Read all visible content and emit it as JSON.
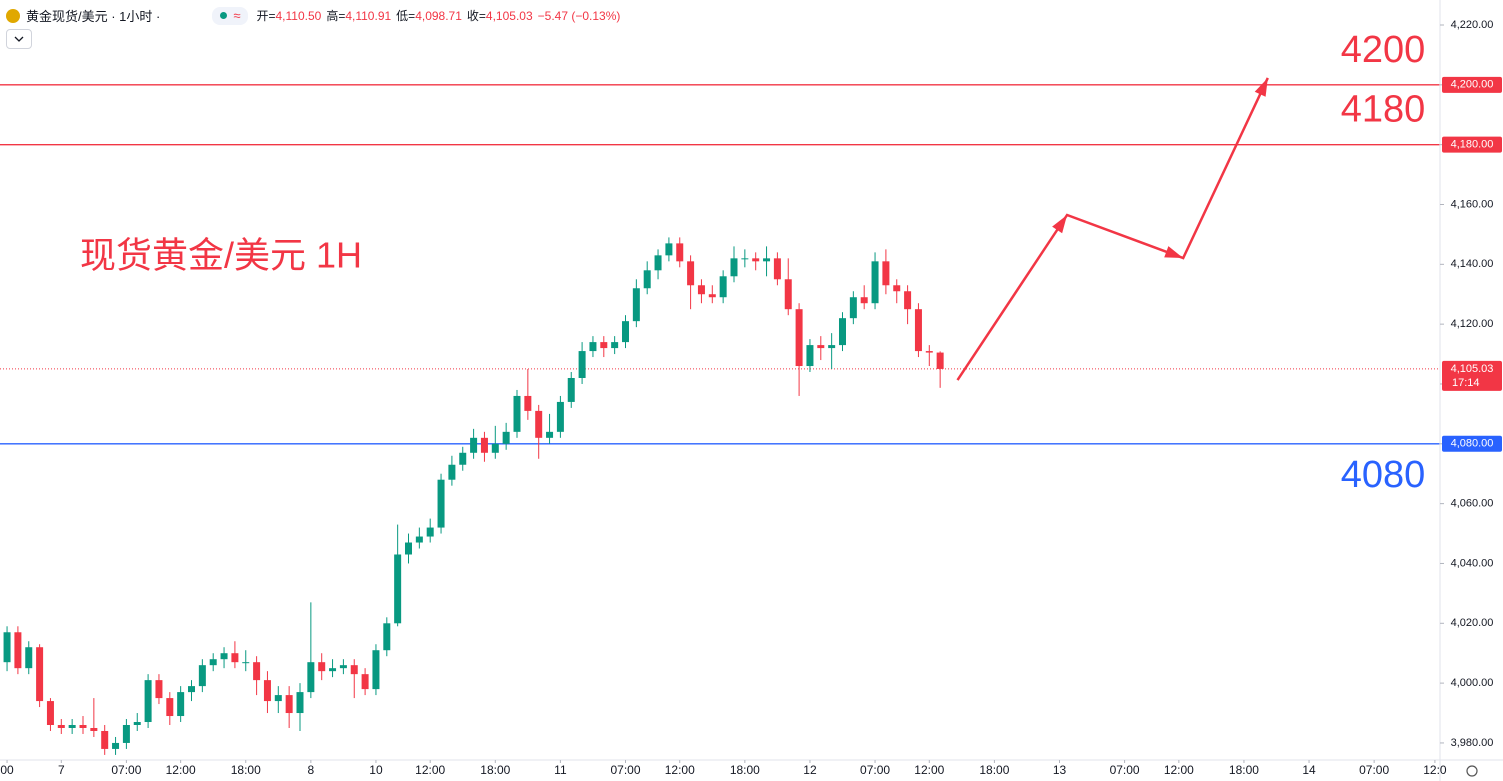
{
  "header": {
    "symbol": "黄金现货/美元 · 1小时 ·",
    "badge": "≈",
    "ohlc": [
      {
        "label": "开=",
        "value": "4,110.50"
      },
      {
        "label": "高=",
        "value": "4,110.91"
      },
      {
        "label": "低=",
        "value": "4,098.71"
      },
      {
        "label": "收=",
        "value": "4,105.03"
      }
    ],
    "change": "−5.47 (−0.13%)"
  },
  "chart_data": {
    "type": "candlestick",
    "title": "现货黄金/美元 1H",
    "up_color": "#089981",
    "down_color": "#f23645",
    "open": [
      4007,
      4017,
      4005,
      4012,
      3994,
      3986,
      3985,
      3986,
      3985,
      3984,
      3978,
      3980,
      3986,
      3987,
      4001,
      3995,
      3989,
      3997,
      3999,
      4006,
      4008,
      4010,
      4007,
      4007,
      4001,
      3994,
      3996,
      3990,
      3997,
      4007,
      4004,
      4005,
      4006,
      4003,
      3998,
      4011,
      4020,
      4043,
      4047,
      4049,
      4052,
      4068,
      4073,
      4077,
      4082,
      4077,
      4080,
      4084,
      4096,
      4091,
      4082,
      4084,
      4094,
      4102,
      4111,
      4114,
      4112,
      4114,
      4121,
      4132,
      4138,
      4143,
      4147,
      4141,
      4133,
      4130,
      4129,
      4136,
      4142,
      4142,
      4141,
      4142,
      4135,
      4125,
      4106,
      4113,
      4112,
      4113,
      4122,
      4129,
      4127,
      4141,
      4133,
      4131,
      4125,
      4111,
      4110.5
    ],
    "high": [
      4019,
      4019,
      4014,
      4013,
      3995,
      3988,
      3988,
      3989,
      3995,
      3986,
      3982,
      3988,
      3990,
      4003,
      4003,
      3997,
      3999,
      4001,
      4008,
      4010,
      4012,
      4014,
      4011,
      4009,
      4004,
      3999,
      3999,
      4000,
      4027,
      4010,
      4008,
      4008,
      4008,
      4005,
      4013,
      4022,
      4053,
      4050,
      4052,
      4055,
      4070,
      4076,
      4079,
      4085,
      4084,
      4086,
      4087,
      4098,
      4105,
      4093,
      4090,
      4096,
      4104,
      4114,
      4116,
      4116,
      4116,
      4123,
      4135,
      4141,
      4145,
      4149,
      4149,
      4143,
      4135,
      4133,
      4138,
      4146,
      4145,
      4144,
      4146,
      4144,
      4142,
      4127,
      4115,
      4116,
      4117,
      4124,
      4131,
      4133,
      4144,
      4145,
      4135,
      4133,
      4127,
      4113,
      4110.91
    ],
    "low": [
      4004,
      4003,
      4003,
      3992,
      3984,
      3983,
      3983,
      3983,
      3982,
      3976,
      3976,
      3978,
      3984,
      3985,
      3993,
      3986,
      3987,
      3994,
      3997,
      4004,
      4005,
      4005,
      4004,
      3996,
      3990,
      3990,
      3985,
      3984,
      3995,
      4001,
      4002,
      4003,
      3995,
      3996,
      3996,
      4009,
      4019,
      4040,
      4045,
      4047,
      4050,
      4066,
      4071,
      4075,
      4074,
      4075,
      4078,
      4082,
      4088,
      4075,
      4080,
      4082,
      4092,
      4100,
      4109,
      4109,
      4110,
      4112,
      4119,
      4130,
      4135,
      4141,
      4139,
      4125,
      4127,
      4127,
      4127,
      4134,
      4139,
      4138,
      4136,
      4133,
      4123,
      4096,
      4104,
      4108,
      4105,
      4111,
      4120,
      4125,
      4125,
      4130,
      4127,
      4120,
      4109,
      4106,
      4098.71
    ],
    "close": [
      4017,
      4005,
      4012,
      3994,
      3986,
      3985,
      3986,
      3985,
      3984,
      3978,
      3980,
      3986,
      3987,
      4001,
      3995,
      3989,
      3997,
      3999,
      4006,
      4008,
      4010,
      4007,
      4007,
      4001,
      3994,
      3996,
      3990,
      3997,
      4007,
      4004,
      4005,
      4006,
      4003,
      3998,
      4011,
      4020,
      4043,
      4047,
      4049,
      4052,
      4068,
      4073,
      4077,
      4082,
      4077,
      4080,
      4084,
      4096,
      4091,
      4082,
      4084,
      4094,
      4102,
      4111,
      4114,
      4112,
      4114,
      4121,
      4132,
      4138,
      4143,
      4147,
      4141,
      4133,
      4130,
      4129,
      4136,
      4142,
      4142,
      4141,
      4142,
      4135,
      4125,
      4106,
      4113,
      4112,
      4113,
      4122,
      4129,
      4127,
      4141,
      4133,
      4131,
      4125,
      4111,
      4110.5,
      4105.03
    ],
    "xlim": [
      -0.65,
      132.07
    ],
    "xticks": [
      {
        "value": 0,
        "label": "00"
      },
      {
        "value": 5,
        "label": "7"
      },
      {
        "value": 11,
        "label": "07:00"
      },
      {
        "value": 16,
        "label": "12:00"
      },
      {
        "value": 22,
        "label": "18:00"
      },
      {
        "value": 28,
        "label": "8"
      },
      {
        "value": 34,
        "label": "10"
      },
      {
        "value": 39,
        "label": "12:00"
      },
      {
        "value": 45,
        "label": "18:00"
      },
      {
        "value": 51,
        "label": "11"
      },
      {
        "value": 57,
        "label": "07:00"
      },
      {
        "value": 62,
        "label": "12:00"
      },
      {
        "value": 68,
        "label": "18:00"
      },
      {
        "value": 74,
        "label": "12"
      },
      {
        "value": 80,
        "label": "07:00"
      },
      {
        "value": 85,
        "label": "12:00"
      },
      {
        "value": 91,
        "label": "18:00"
      },
      {
        "value": 97,
        "label": "13"
      },
      {
        "value": 103,
        "label": "07:00"
      },
      {
        "value": 108,
        "label": "12:00"
      },
      {
        "value": 114,
        "label": "18:00"
      },
      {
        "value": 120,
        "label": "14"
      },
      {
        "value": 126,
        "label": "07:00"
      },
      {
        "value": 131.6,
        "label": "12:0"
      }
    ],
    "ylim": [
      3974.3,
      4228.36
    ],
    "yticks": [
      {
        "value": 3980,
        "label": "3,980.00"
      },
      {
        "value": 4000,
        "label": "4,000.00"
      },
      {
        "value": 4020,
        "label": "4,020.00"
      },
      {
        "value": 4040,
        "label": "4,040.00"
      },
      {
        "value": 4060,
        "label": "4,060.00"
      },
      {
        "value": 4080,
        "label": "4,080.00"
      },
      {
        "value": 4100,
        "label": "4,100.00"
      },
      {
        "value": 4120,
        "label": "4,120.00"
      },
      {
        "value": 4140,
        "label": "4,140.00"
      },
      {
        "value": 4160,
        "label": "4,160.00"
      },
      {
        "value": 4180,
        "label": "4,180.00"
      },
      {
        "value": 4200,
        "label": "4,200.00"
      },
      {
        "value": 4220,
        "label": "4,220.00"
      }
    ],
    "levels": [
      {
        "value": 4200,
        "label": "4,200.00",
        "text": "4200",
        "color": "#f23645"
      },
      {
        "value": 4180,
        "label": "4,180.00",
        "text": "4180",
        "color": "#f23645"
      },
      {
        "value": 4080,
        "label": "4,080.00",
        "text": "4080",
        "color": "#2962ff"
      }
    ],
    "last_price": {
      "value": 4105.03,
      "label": "4,105.03",
      "countdown": "17:14",
      "color": "#f23645"
    },
    "arrow": {
      "x": [
        87.6,
        97.7,
        108.4,
        116.2
      ],
      "y": [
        4101.3,
        4156.5,
        4142.1,
        4202.3
      ],
      "color": "#f23645"
    }
  }
}
